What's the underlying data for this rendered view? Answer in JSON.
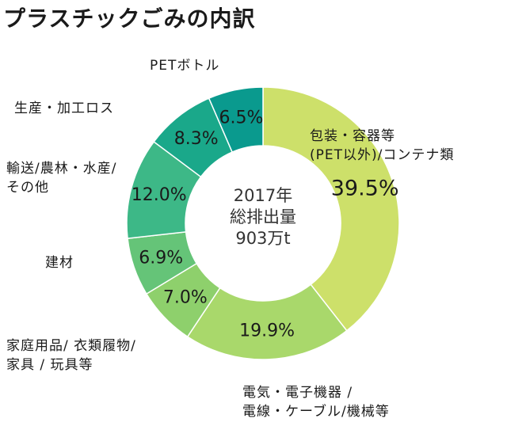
{
  "chart_data": {
    "type": "pie",
    "variant": "donut",
    "title": "プラスチックごみの内訳",
    "center_lines": [
      "2017年",
      "総排出量",
      "903万t"
    ],
    "slices": [
      {
        "label_lines": [
          "包装・容器等",
          "(PET以外)/コンテナ類"
        ],
        "value": 39.5,
        "value_label": "39.5%",
        "color": "#cde06a"
      },
      {
        "label_lines": [
          "電気・電子機器 /",
          "電線・ケーブル/機械等"
        ],
        "value": 19.9,
        "value_label": "19.9%",
        "color": "#a9d86b"
      },
      {
        "label_lines": [
          "家庭用品/ 衣類履物/",
          "家具 / 玩具等"
        ],
        "value": 7.0,
        "value_label": "7.0%",
        "color": "#8ed06c"
      },
      {
        "label_lines": [
          "建材"
        ],
        "value": 6.9,
        "value_label": "6.9%",
        "color": "#65c478"
      },
      {
        "label_lines": [
          "輸送/農林・水産/",
          "その他"
        ],
        "value": 12.0,
        "value_label": "12.0%",
        "color": "#3db887"
      },
      {
        "label_lines": [
          "生産・加工ロス"
        ],
        "value": 8.3,
        "value_label": "8.3%",
        "color": "#1aa88a"
      },
      {
        "label_lines": [
          "PETボトル"
        ],
        "value": 6.5,
        "value_label": "6.5%",
        "color": "#0a9a8e"
      }
    ]
  }
}
